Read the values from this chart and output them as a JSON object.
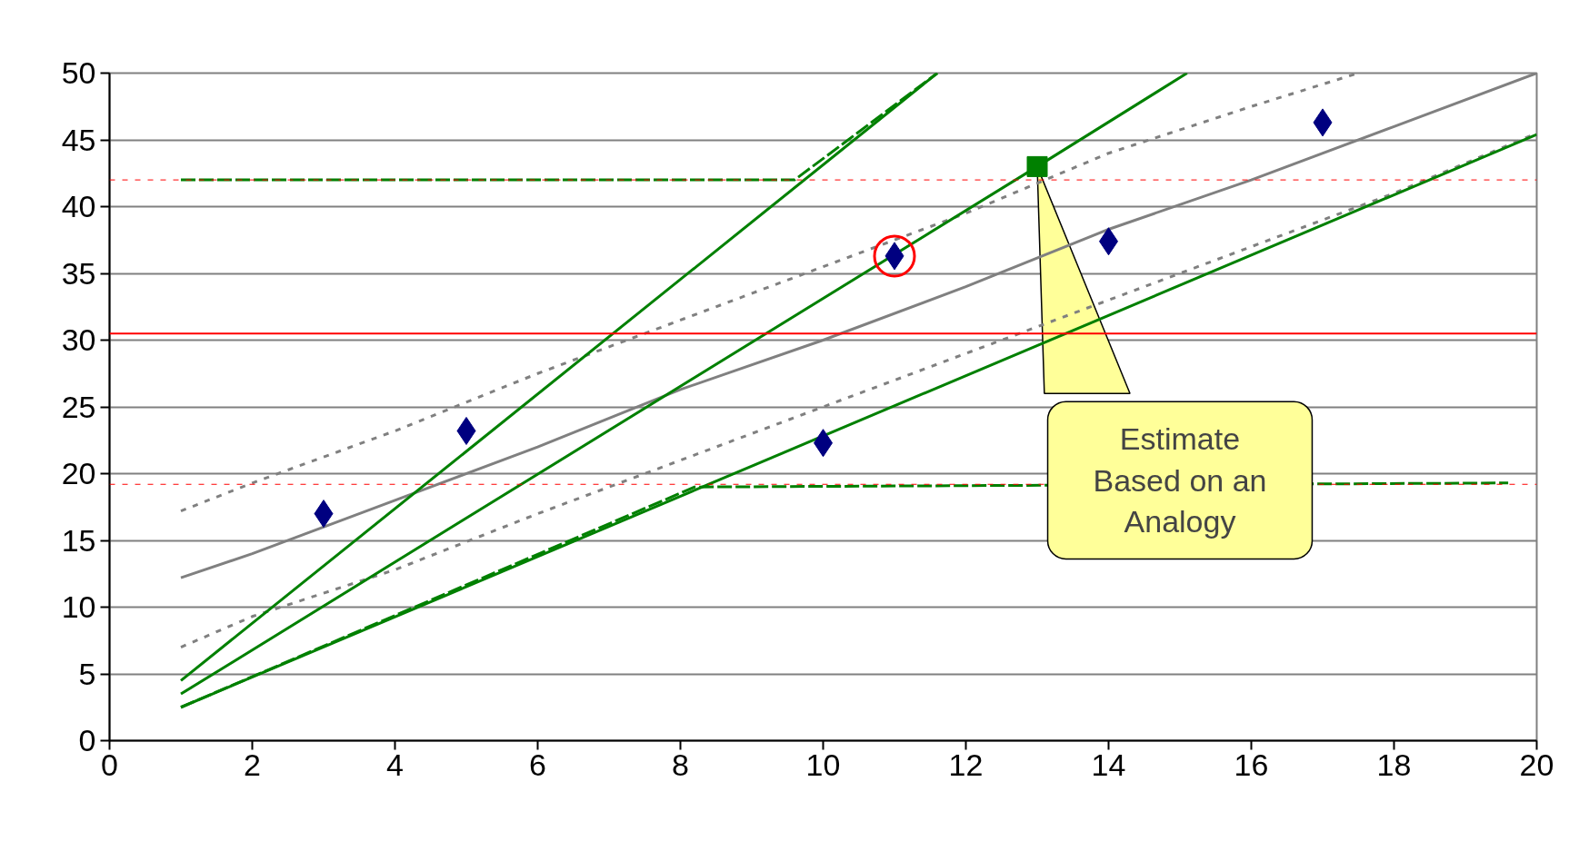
{
  "chart_data": {
    "type": "line",
    "xlim": [
      0,
      20
    ],
    "ylim": [
      0,
      50
    ],
    "xticks": [
      0,
      2,
      4,
      6,
      8,
      10,
      12,
      14,
      16,
      18,
      20
    ],
    "yticks": [
      0,
      5,
      10,
      15,
      20,
      25,
      30,
      35,
      40,
      45,
      50
    ],
    "grid": "y",
    "ref_lines": [
      {
        "axis": "y",
        "value": 42,
        "color": "#ff0000",
        "line_style": "dotted"
      },
      {
        "axis": "y",
        "value": 19.2,
        "color": "#ff0000",
        "line_style": "dotted"
      },
      {
        "axis": "y",
        "value": 30.5,
        "color": "#ff0000",
        "line_style": "solid"
      }
    ],
    "series": [
      {
        "color": "#808080",
        "line_style": "dotted",
        "x": [
          1,
          2,
          4,
          6,
          8,
          10,
          12,
          14,
          16,
          17.5
        ],
        "values": [
          17.2,
          19.3,
          23.2,
          27.5,
          31.5,
          35.5,
          39.5,
          44,
          47.5,
          50
        ]
      },
      {
        "color": "#808080",
        "line_style": "dotted",
        "x": [
          1,
          2,
          4,
          6,
          8,
          10,
          12,
          14,
          16,
          18,
          20
        ],
        "values": [
          7,
          9.3,
          12.8,
          17,
          21,
          25,
          29,
          33,
          37,
          41,
          45.5
        ]
      },
      {
        "color": "#808080",
        "line_style": "solid",
        "x": [
          1,
          2,
          4,
          6,
          8,
          10,
          12,
          14,
          16,
          18,
          20
        ],
        "values": [
          12.2,
          14,
          18,
          22,
          26.3,
          30,
          34,
          38.3,
          42,
          46,
          50
        ]
      },
      {
        "color": "#008000",
        "line_style": "solid",
        "x": [
          1,
          11.6
        ],
        "values": [
          4.5,
          50
        ]
      },
      {
        "color": "#008000",
        "line_style": "solid",
        "x": [
          1,
          20
        ],
        "values": [
          2.5,
          45.4
        ]
      },
      {
        "color": "#008000",
        "line_style": "dashed",
        "x": [
          1,
          9.6,
          11.6
        ],
        "values": [
          42,
          42,
          50
        ]
      },
      {
        "color": "#008000",
        "line_style": "dashed",
        "x": [
          1,
          8.2,
          19.6
        ],
        "values": [
          2.5,
          19,
          19.3
        ]
      },
      {
        "color": "#008000",
        "line_style": "solid",
        "x": [
          1,
          13,
          15.1
        ],
        "values": [
          3.5,
          43,
          50
        ]
      },
      {
        "type": "scatter",
        "marker": "diamond",
        "color": "#000080",
        "x": [
          3,
          5,
          10,
          11,
          14,
          17
        ],
        "values": [
          17,
          23.2,
          22.3,
          36.3,
          37.4,
          46.3
        ]
      },
      {
        "type": "scatter",
        "marker": "square",
        "color": "#008000",
        "x": [
          13
        ],
        "values": [
          43
        ]
      },
      {
        "type": "scatter",
        "marker": "circle",
        "color": "#ff0000",
        "x": [
          11
        ],
        "values": [
          36.3
        ]
      }
    ],
    "annotations": [
      {
        "text": "Estimate\nBased on an\nAnalogy",
        "x": 13,
        "y": 43
      }
    ]
  }
}
